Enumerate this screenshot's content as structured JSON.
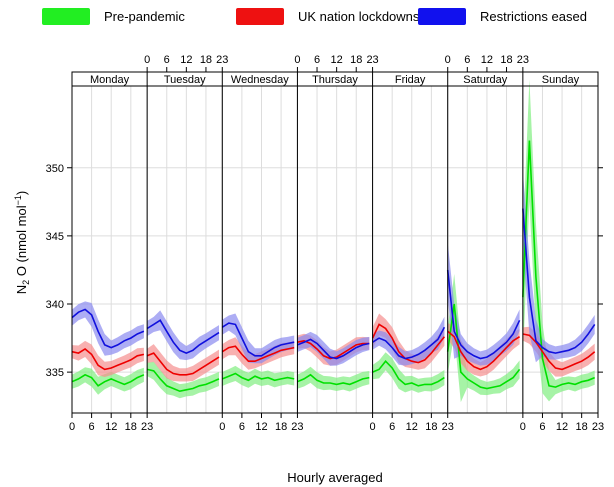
{
  "chart_data": {
    "type": "line",
    "title": "",
    "xlabel": "Hourly averaged",
    "ylabel": "N2 O (nmol mol−1)",
    "ylabel_parts": {
      "base": "N",
      "sub": "2",
      "mid": " O (nmol mol",
      "sup": "−1",
      "end": ")"
    },
    "ylim": [
      332,
      356
    ],
    "y_ticks": [
      335,
      340,
      345,
      350
    ],
    "x_hour_ticks": [
      0,
      6,
      12,
      18,
      23
    ],
    "panels": [
      "Monday",
      "Tuesday",
      "Wednesday",
      "Thursday",
      "Friday",
      "Saturday",
      "Sunday"
    ],
    "top_axis_panels": [
      1,
      3,
      5
    ],
    "bottom_axis_panels": [
      0,
      2,
      4,
      6
    ],
    "grid": true,
    "legend_position": "top",
    "x_step_hours": 2,
    "series": [
      {
        "name": "Pre-pandemic",
        "color": "#00e000",
        "band_color": "#80ee80",
        "values": [
          [
            334.3,
            334.5,
            334.8,
            334.6,
            334.0,
            334.3,
            334.5,
            334.3,
            334.1,
            334.3,
            334.6,
            334.8
          ],
          [
            335.2,
            335.1,
            334.5,
            334.0,
            333.8,
            333.6,
            333.7,
            333.8,
            334.0,
            334.1,
            334.3,
            334.5
          ],
          [
            334.5,
            334.7,
            334.9,
            334.6,
            334.4,
            334.7,
            334.5,
            334.6,
            334.4,
            334.5,
            334.6,
            334.5
          ],
          [
            334.3,
            334.5,
            334.8,
            334.4,
            334.2,
            334.2,
            334.1,
            334.2,
            334.1,
            334.3,
            334.5,
            334.6
          ],
          [
            335.0,
            335.2,
            335.8,
            335.3,
            334.5,
            334.1,
            334.2,
            334.0,
            334.1,
            334.1,
            334.3,
            334.6
          ],
          [
            336.5,
            340.0,
            335.0,
            334.5,
            334.2,
            333.9,
            333.8,
            333.9,
            334.0,
            334.3,
            334.6,
            335.2
          ],
          [
            340.5,
            352.0,
            342.0,
            336.0,
            334.0,
            333.9,
            334.1,
            334.2,
            334.1,
            334.3,
            334.4,
            334.6
          ]
        ]
      },
      {
        "name": "UK nation lockdowns",
        "color": "#ee0000",
        "band_color": "#f58f8f",
        "values": [
          [
            336.5,
            336.4,
            336.7,
            336.3,
            335.5,
            335.2,
            335.3,
            335.5,
            335.7,
            335.9,
            336.2,
            336.3
          ],
          [
            336.2,
            336.4,
            335.8,
            335.2,
            334.9,
            334.8,
            334.8,
            334.9,
            335.2,
            335.5,
            335.8,
            336.1
          ],
          [
            336.5,
            336.8,
            336.9,
            336.3,
            335.8,
            335.8,
            336.0,
            336.2,
            336.4,
            336.6,
            336.7,
            336.8
          ],
          [
            337.2,
            337.3,
            337.1,
            336.7,
            336.2,
            336.0,
            336.1,
            336.4,
            336.7,
            337.0,
            337.1,
            337.1
          ],
          [
            337.5,
            338.5,
            338.2,
            337.5,
            336.5,
            336.0,
            335.8,
            335.7,
            335.9,
            336.4,
            337.0,
            337.6
          ],
          [
            338.0,
            337.6,
            336.5,
            335.8,
            335.4,
            335.2,
            335.4,
            335.8,
            336.3,
            336.8,
            337.3,
            337.6
          ],
          [
            337.8,
            337.7,
            337.2,
            336.5,
            335.8,
            335.3,
            335.2,
            335.4,
            335.6,
            335.8,
            336.1,
            336.5
          ]
        ]
      },
      {
        "name": "Restrictions eased",
        "color": "#1010dd",
        "band_color": "#8a8af0",
        "values": [
          [
            339.0,
            339.4,
            339.6,
            339.2,
            338.0,
            337.0,
            336.8,
            337.0,
            337.3,
            337.5,
            337.8,
            338.0
          ],
          [
            338.2,
            338.5,
            338.8,
            338.0,
            337.2,
            336.6,
            336.4,
            336.6,
            337.0,
            337.3,
            337.6,
            337.9
          ],
          [
            338.3,
            338.6,
            338.5,
            337.5,
            336.5,
            336.2,
            336.2,
            336.5,
            336.8,
            337.0,
            337.1,
            337.2
          ],
          [
            337.0,
            337.2,
            337.4,
            337.1,
            336.6,
            336.1,
            336.0,
            336.2,
            336.5,
            336.8,
            337.0,
            337.1
          ],
          [
            337.2,
            337.5,
            337.3,
            336.8,
            336.2,
            336.0,
            336.1,
            336.3,
            336.6,
            337.0,
            337.4,
            338.3
          ],
          [
            342.5,
            338.0,
            337.0,
            336.5,
            336.2,
            336.0,
            336.1,
            336.4,
            336.8,
            337.2,
            337.8,
            338.8
          ],
          [
            347.0,
            340.5,
            337.3,
            336.8,
            336.5,
            336.4,
            336.5,
            336.6,
            336.8,
            337.2,
            337.8,
            338.5
          ]
        ]
      }
    ]
  }
}
